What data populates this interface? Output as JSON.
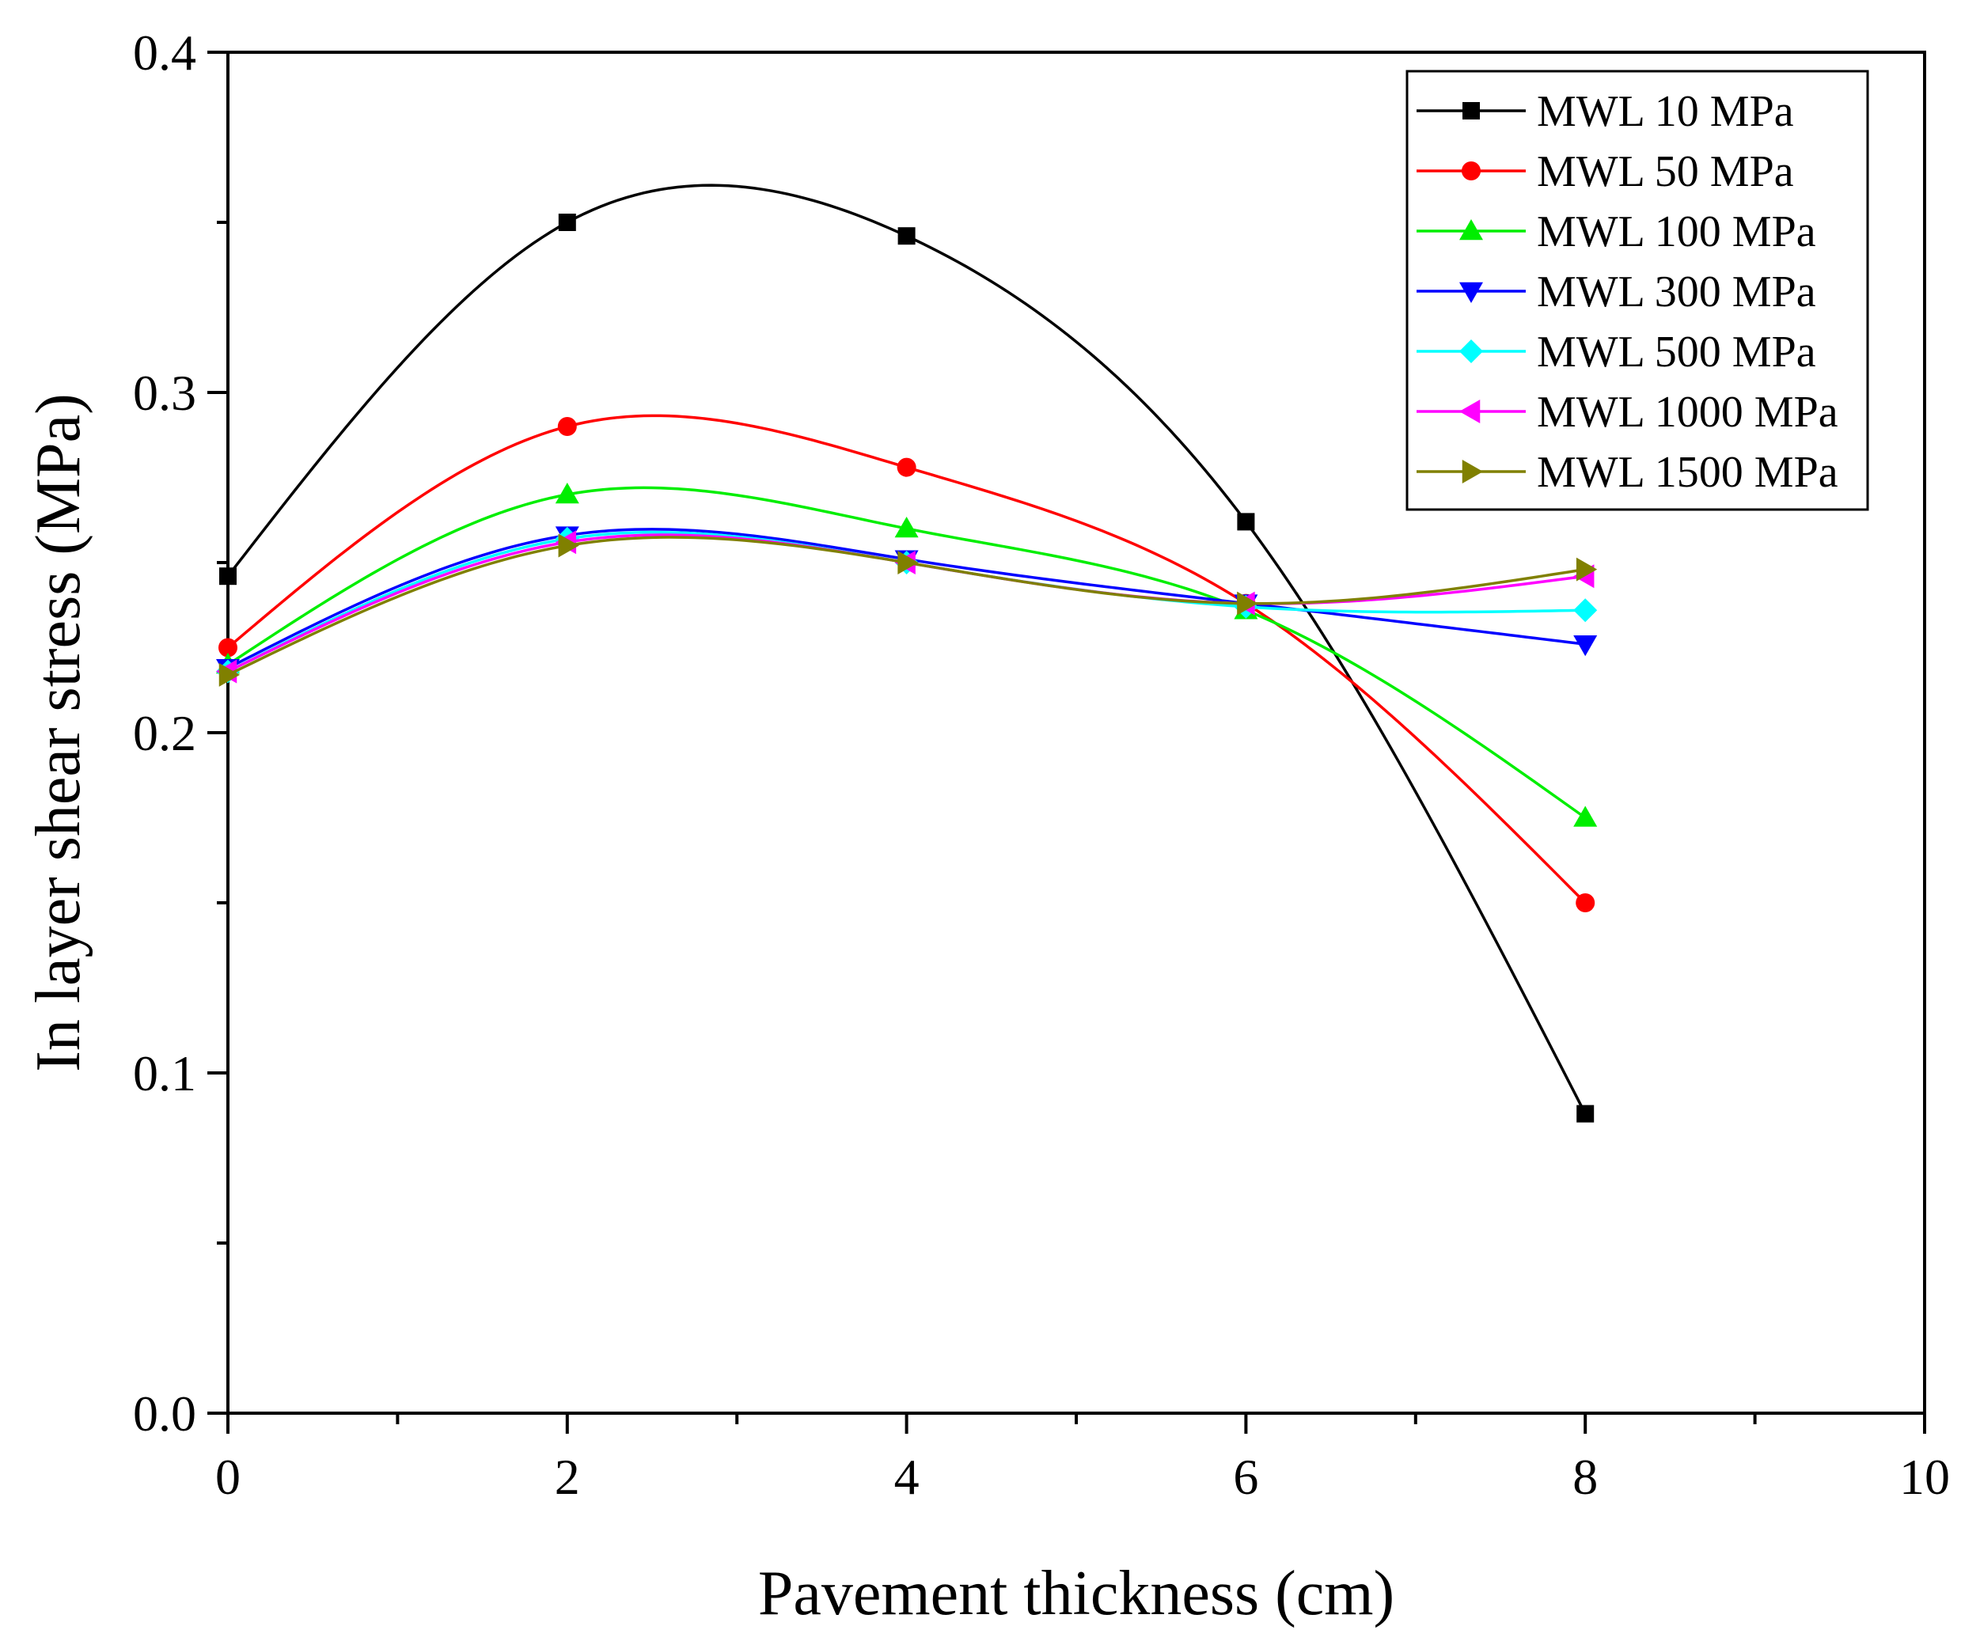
{
  "chart_data": {
    "type": "line",
    "xlabel": "Pavement thickness (cm)",
    "ylabel": "In layer shear stress (MPa)",
    "xlim": [
      0,
      10
    ],
    "ylim": [
      0.0,
      0.4
    ],
    "x_ticks": [
      0,
      2,
      4,
      6,
      8,
      10
    ],
    "x_tick_labels": [
      "0",
      "2",
      "4",
      "6",
      "8",
      "10"
    ],
    "y_ticks": [
      0.0,
      0.1,
      0.2,
      0.3,
      0.4
    ],
    "y_tick_labels": [
      "0.0",
      "0.1",
      "0.2",
      "0.3",
      "0.4"
    ],
    "grid": false,
    "legend_position": "top-right",
    "x": [
      0,
      2,
      4,
      6,
      8
    ],
    "series": [
      {
        "name": "MWL 10 MPa",
        "color": "#000000",
        "marker": "square",
        "values": [
          0.246,
          0.35,
          0.346,
          0.262,
          0.088
        ]
      },
      {
        "name": "MWL 50 MPa",
        "color": "#ff0000",
        "marker": "circle",
        "values": [
          0.225,
          0.29,
          0.278,
          0.238,
          0.15
        ]
      },
      {
        "name": "MWL 100 MPa",
        "color": "#00ee00",
        "marker": "triangle-up",
        "values": [
          0.22,
          0.27,
          0.26,
          0.236,
          0.175
        ]
      },
      {
        "name": "MWL 300 MPa",
        "color": "#0000ff",
        "marker": "triangle-down",
        "values": [
          0.219,
          0.258,
          0.251,
          0.238,
          0.226
        ]
      },
      {
        "name": "MWL 500 MPa",
        "color": "#00ffff",
        "marker": "diamond",
        "values": [
          0.218,
          0.257,
          0.25,
          0.237,
          0.236
        ]
      },
      {
        "name": "MWL 1000 MPa",
        "color": "#ff00ff",
        "marker": "triangle-left",
        "values": [
          0.218,
          0.256,
          0.25,
          0.238,
          0.246
        ]
      },
      {
        "name": "MWL 1500 MPa",
        "color": "#808000",
        "marker": "triangle-right",
        "values": [
          0.217,
          0.255,
          0.25,
          0.238,
          0.248
        ]
      }
    ]
  }
}
